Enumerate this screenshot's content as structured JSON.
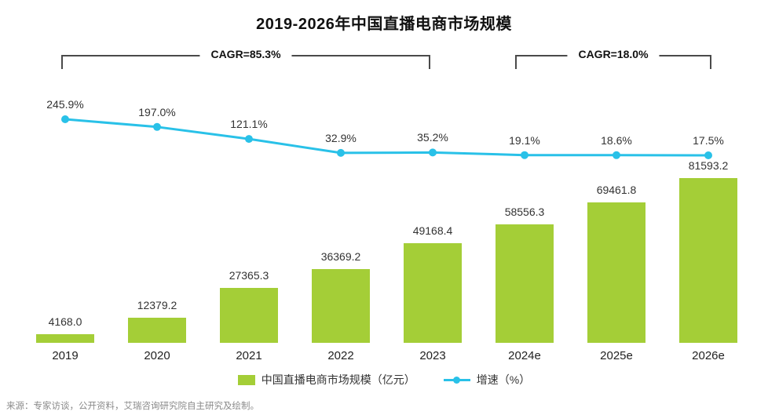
{
  "title": "2019-2026年中国直播电商市场规模",
  "source": "来源：专家访谈，公开资料，艾瑞咨询研究院自主研究及绘制。",
  "legend": {
    "bar_label": "中国直播电商市场规模（亿元）",
    "line_label": "增速（%）"
  },
  "colors": {
    "bar": "#a4ce37",
    "line": "#29c1e8",
    "bracket": "#4a4a4a"
  },
  "chart_data": {
    "type": "bar",
    "subtype": "bar+line combo",
    "title": "2019-2026年中国直播电商市场规模",
    "categories": [
      "2019",
      "2020",
      "2021",
      "2022",
      "2023",
      "2024e",
      "2025e",
      "2026e"
    ],
    "series": [
      {
        "name": "中国直播电商市场规模（亿元）",
        "type": "bar",
        "values": [
          4168.0,
          12379.2,
          27365.3,
          36369.2,
          49168.4,
          58556.3,
          69461.8,
          81593.2
        ]
      },
      {
        "name": "增速（%）",
        "type": "line",
        "values": [
          245.9,
          197.0,
          121.1,
          32.9,
          35.2,
          19.1,
          18.6,
          17.5
        ]
      }
    ],
    "annotations": [
      {
        "label": "CAGR=85.3%",
        "span": [
          "2019",
          "2023"
        ]
      },
      {
        "label": "CAGR=18.0%",
        "span": [
          "2024e",
          "2026e"
        ]
      }
    ],
    "xlabel": "",
    "ylabel": "",
    "grid": false,
    "legend_position": "bottom",
    "value_labels_shown": true
  }
}
